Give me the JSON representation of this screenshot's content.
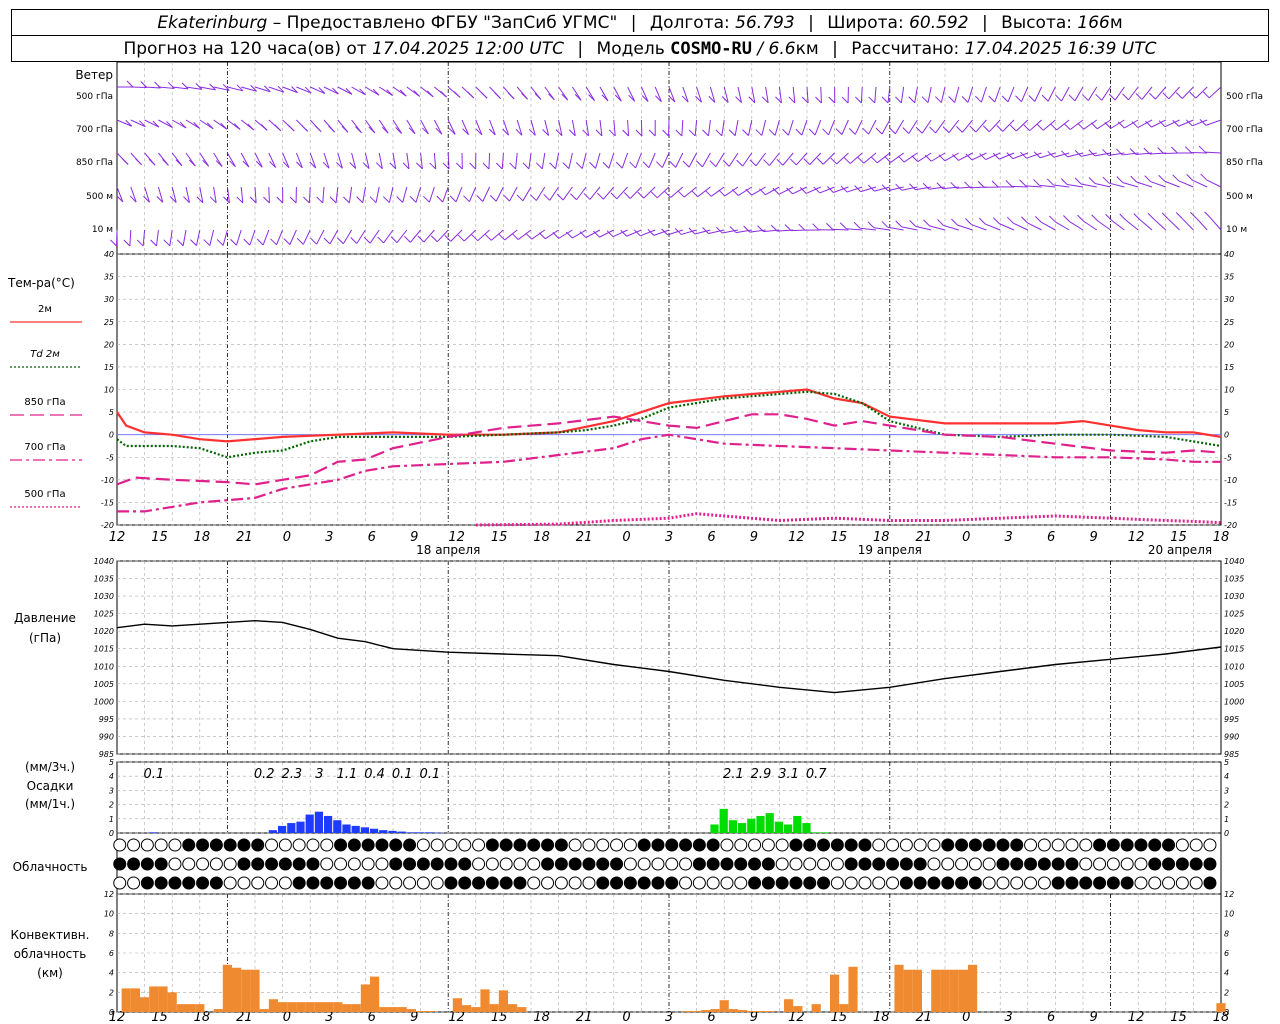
{
  "header": {
    "station": "Ekaterinburg",
    "provider": "– Предоставлено ФГБУ \"ЗапСиб УГМС\"",
    "lon_label": "Долгота:",
    "lon_value": "56.793",
    "lat_label": "Широта:",
    "lat_value": "60.592",
    "alt_label": "Высота:",
    "alt_value": "166",
    "alt_unit": "м",
    "forecast_label": "Прогноз на 120 часа(ов) от",
    "forecast_from": "17.04.2025 12:00 UTC",
    "model_label": "Модель",
    "model_name": "COSMO-RU",
    "model_res": "/ 6.6",
    "model_res_unit": "км",
    "computed_label": "Рассчитано:",
    "computed_at": "17.04.2025 16:39 UTC"
  },
  "colors": {
    "t2m": "#ff3030",
    "td2m": "#006400",
    "magenta": "#e0208c",
    "wind": "#8a2be2",
    "precip_conv": "#1e3cff",
    "precip_green": "#00dd00",
    "convective": "#f08a30",
    "grid": "#aaaaaa"
  },
  "time_axis": {
    "hours": [
      "12",
      "15",
      "18",
      "21",
      "0",
      "3",
      "6",
      "9",
      "12",
      "15",
      "18",
      "21",
      "0",
      "3",
      "6",
      "9",
      "12",
      "15",
      "18",
      "21",
      "0",
      "3",
      "6",
      "9",
      "12",
      "15",
      "18"
    ],
    "day_labels": [
      "18 апреля",
      "19 апреля",
      "20 апреля"
    ]
  },
  "wind_panel": {
    "title": "Ветер",
    "levels": [
      "500 гПа",
      "700 гПа",
      "850 гПа",
      "500 м",
      "10 м"
    ]
  },
  "temp_panel": {
    "title": "Тем-ра(°С)",
    "legend": [
      {
        "label": "2м",
        "style": "solid",
        "color": "#ff3030"
      },
      {
        "label": "2м",
        "prefix": "Td",
        "style": "dotted",
        "color": "#006400"
      },
      {
        "label": "гПа",
        "prefix": "850",
        "style": "long-dash",
        "color": "#e0208c"
      },
      {
        "label": "гПа",
        "prefix": "700",
        "style": "dash-dot",
        "color": "#e0208c"
      },
      {
        "label": "гПа",
        "prefix": "500",
        "style": "dotted",
        "color": "#e0208c"
      }
    ]
  },
  "pressure_panel": {
    "title": "Давление",
    "unit": "(гПа)"
  },
  "precip_panel": {
    "unit_3h": "(мм/3ч.)",
    "title": "Осадки",
    "unit_1h": "(мм/1ч.)",
    "totals": [
      {
        "hour": 4,
        "label": "0.1"
      },
      {
        "hour": 16,
        "label": "0.2"
      },
      {
        "hour": 19,
        "label": "2.3"
      },
      {
        "hour": 22,
        "label": "3"
      },
      {
        "hour": 25,
        "label": "1.1"
      },
      {
        "hour": 28,
        "label": "0.4"
      },
      {
        "hour": 31,
        "label": "0.1"
      },
      {
        "hour": 34,
        "label": "0.1"
      },
      {
        "hour": 67,
        "label": "2.1"
      },
      {
        "hour": 70,
        "label": "2.9"
      },
      {
        "hour": 73,
        "label": "3.1"
      },
      {
        "hour": 76,
        "label": "0.7"
      }
    ]
  },
  "cloud_panel": {
    "title": "Облачность"
  },
  "conv_panel": {
    "title_line1": "Конвективн.",
    "title_line2": "облачность",
    "unit": "(км)"
  },
  "chart_data": [
    {
      "type": "line",
      "title": "Тем-ра(°С)",
      "x_unit": "hours since 17.04.2025 12:00 UTC",
      "ylim": [
        -20,
        40
      ],
      "series": [
        {
          "name": "2м",
          "x": [
            0,
            1,
            3,
            6,
            9,
            12,
            18,
            24,
            30,
            36,
            42,
            48,
            54,
            60,
            66,
            72,
            75,
            78,
            81,
            84,
            90,
            96,
            99,
            102,
            105,
            108,
            111,
            114,
            117,
            120
          ],
          "values": [
            5,
            2,
            0.5,
            0,
            -1,
            -1.5,
            -0.5,
            0,
            0.5,
            0,
            0,
            0.5,
            3,
            7,
            8.5,
            9.5,
            10,
            8,
            7,
            4,
            2.5,
            2.5,
            2.5,
            2.5,
            3,
            2,
            1,
            0.5,
            0.5,
            -0.5
          ]
        },
        {
          "name": "Td 2м",
          "x": [
            0,
            1,
            3,
            6,
            9,
            12,
            15,
            18,
            21,
            24,
            30,
            36,
            42,
            48,
            51,
            54,
            57,
            60,
            66,
            72,
            75,
            78,
            81,
            84,
            90,
            96,
            102,
            108,
            114,
            120
          ],
          "values": [
            -1,
            -2.5,
            -2.5,
            -2.5,
            -3,
            -5,
            -4,
            -3.5,
            -1.5,
            -0.5,
            -0.5,
            -0.5,
            0,
            0.5,
            1,
            2,
            3.5,
            6,
            8,
            9,
            9.5,
            9,
            7,
            3,
            0,
            -0.5,
            0,
            0,
            -0.5,
            -2.5
          ]
        },
        {
          "name": "850 гПа",
          "x": [
            0,
            2,
            6,
            12,
            15,
            18,
            21,
            24,
            27,
            30,
            36,
            42,
            48,
            54,
            57,
            60,
            63,
            66,
            69,
            72,
            75,
            78,
            81,
            84,
            90,
            96,
            102,
            108,
            114,
            117,
            120
          ],
          "values": [
            -11,
            -9.5,
            -10,
            -10.5,
            -11,
            -10,
            -9,
            -6,
            -5.5,
            -3,
            -0.5,
            1.5,
            2.5,
            4,
            3,
            2,
            1.5,
            3,
            4.5,
            4.5,
            3.5,
            2,
            3,
            2,
            0,
            -0.5,
            -2,
            -3.5,
            -4,
            -3.5,
            -4
          ]
        },
        {
          "name": "700 гПа",
          "x": [
            0,
            3,
            6,
            9,
            12,
            15,
            18,
            21,
            24,
            27,
            30,
            36,
            42,
            48,
            54,
            57,
            60,
            63,
            66,
            72,
            78,
            84,
            90,
            96,
            102,
            108,
            114,
            117,
            120
          ],
          "values": [
            -17,
            -17,
            -16,
            -15,
            -14.5,
            -14,
            -12,
            -11,
            -10,
            -8,
            -7,
            -6.5,
            -6,
            -4.5,
            -3,
            -1,
            0,
            -1,
            -2,
            -2.5,
            -3,
            -3.5,
            -4,
            -4.5,
            -5,
            -5,
            -5.5,
            -6,
            -6
          ]
        },
        {
          "name": "500 гПа",
          "x": [
            39,
            48,
            54,
            60,
            63,
            66,
            72,
            78,
            84,
            90,
            96,
            102,
            108,
            114,
            117,
            120
          ],
          "values": [
            -20,
            -19.8,
            -19,
            -18.5,
            -17.5,
            -18,
            -19,
            -18.5,
            -19,
            -19,
            -18.5,
            -18,
            -18.5,
            -19,
            -19.2,
            -19.5
          ]
        }
      ]
    },
    {
      "type": "line",
      "title": "Давление",
      "ylabel": "(гПа)",
      "ylim": [
        985,
        1040
      ],
      "series": [
        {
          "name": "Давление",
          "x": [
            0,
            3,
            6,
            9,
            12,
            15,
            18,
            21,
            24,
            27,
            30,
            36,
            42,
            48,
            54,
            60,
            66,
            72,
            78,
            84,
            90,
            96,
            102,
            108,
            114,
            117,
            120
          ],
          "values": [
            1021,
            1022,
            1021.5,
            1022,
            1022.5,
            1023,
            1022.5,
            1020.5,
            1018,
            1017,
            1015,
            1014,
            1013.5,
            1013,
            1010.5,
            1008.5,
            1006,
            1004,
            1002.5,
            1004,
            1006.5,
            1008.5,
            1010.5,
            1012,
            1013.5,
            1014.5,
            1015.5
          ]
        }
      ]
    },
    {
      "type": "bar",
      "title": "Осадки",
      "ylim": [
        0,
        5
      ],
      "series": [
        {
          "name": "Осадки (мм/1ч.)",
          "x": [
            4,
            17,
            18,
            19,
            20,
            21,
            22,
            23,
            24,
            25,
            26,
            27,
            28,
            29,
            30,
            31,
            32,
            33,
            34,
            35,
            65,
            66,
            67,
            68,
            69,
            70,
            71,
            72,
            73,
            74,
            75,
            76,
            77
          ],
          "values": [
            0.05,
            0.2,
            0.5,
            0.7,
            0.8,
            1.3,
            1.5,
            1.2,
            0.9,
            0.6,
            0.5,
            0.4,
            0.3,
            0.2,
            0.15,
            0.1,
            0.05,
            0.05,
            0.05,
            0.02,
            0.6,
            1.7,
            0.9,
            0.7,
            1.0,
            1.2,
            1.4,
            0.8,
            0.6,
            1.2,
            0.7,
            0.05,
            0.05
          ]
        }
      ]
    },
    {
      "type": "bar",
      "title": "Конвективн. облачность (км)",
      "ylim": [
        0,
        13
      ],
      "series": [
        {
          "name": "Конвективн. облачность",
          "x": [
            1,
            2,
            3,
            4,
            5,
            6,
            7,
            8,
            9,
            10,
            11,
            12,
            13,
            14,
            15,
            16,
            17,
            18,
            19,
            20,
            21,
            22,
            23,
            24,
            25,
            26,
            27,
            28,
            29,
            30,
            31,
            32,
            33,
            34,
            36,
            37,
            38,
            39,
            40,
            41,
            42,
            43,
            44,
            45,
            46,
            47,
            48,
            49,
            50,
            51,
            60,
            61,
            62,
            63,
            64,
            65,
            66,
            67,
            68,
            69,
            70,
            71,
            72,
            73,
            74,
            75,
            76,
            77,
            78,
            79,
            80,
            81,
            82,
            83,
            84,
            85,
            86,
            87,
            88,
            89,
            90,
            91,
            92,
            93,
            94,
            95,
            96,
            97,
            98,
            99,
            100,
            101,
            102,
            103,
            104,
            105,
            106,
            107,
            108,
            109,
            110,
            111,
            112,
            113,
            114,
            115,
            116,
            117,
            118,
            119,
            120
          ],
          "values": [
            2.4,
            2.4,
            1.5,
            2.6,
            2.6,
            2.0,
            0.8,
            0.8,
            0.8,
            0.0,
            0.3,
            4.8,
            4.5,
            4.3,
            4.3,
            0.3,
            1.3,
            1.0,
            1.0,
            1.0,
            1.0,
            1.0,
            1.0,
            1.0,
            0.8,
            0.8,
            2.8,
            3.6,
            0.5,
            0.5,
            0.5,
            0.3,
            0.1,
            0.1,
            0.0,
            1.4,
            0.7,
            0.5,
            2.3,
            0.8,
            2.2,
            0.8,
            0.5,
            0.0,
            0.0,
            0.0,
            0.0,
            0.0,
            0.0,
            0.0,
            0.0,
            0.0,
            0.1,
            0.1,
            0.2,
            0.3,
            1.2,
            0.3,
            0.2,
            0.1,
            0.1,
            0.1,
            0.0,
            1.3,
            0.6,
            0.0,
            0.8,
            0.0,
            3.8,
            0.8,
            4.6,
            0.0,
            0.0,
            0.0,
            0.0,
            4.8,
            4.3,
            4.3,
            0.0,
            4.3,
            4.3,
            4.3,
            4.3,
            4.8,
            0.0,
            0.0,
            0.0,
            0.0,
            0.0,
            0.0,
            0.0,
            0.0,
            0.0,
            0.0,
            0.0,
            0.0,
            0.0,
            0.0,
            0.0,
            0.0,
            0.0,
            0.0,
            0.0,
            0.0,
            0.0,
            0.0,
            0.0,
            0.0,
            0.0,
            0.0,
            0.9
          ]
        }
      ]
    }
  ]
}
